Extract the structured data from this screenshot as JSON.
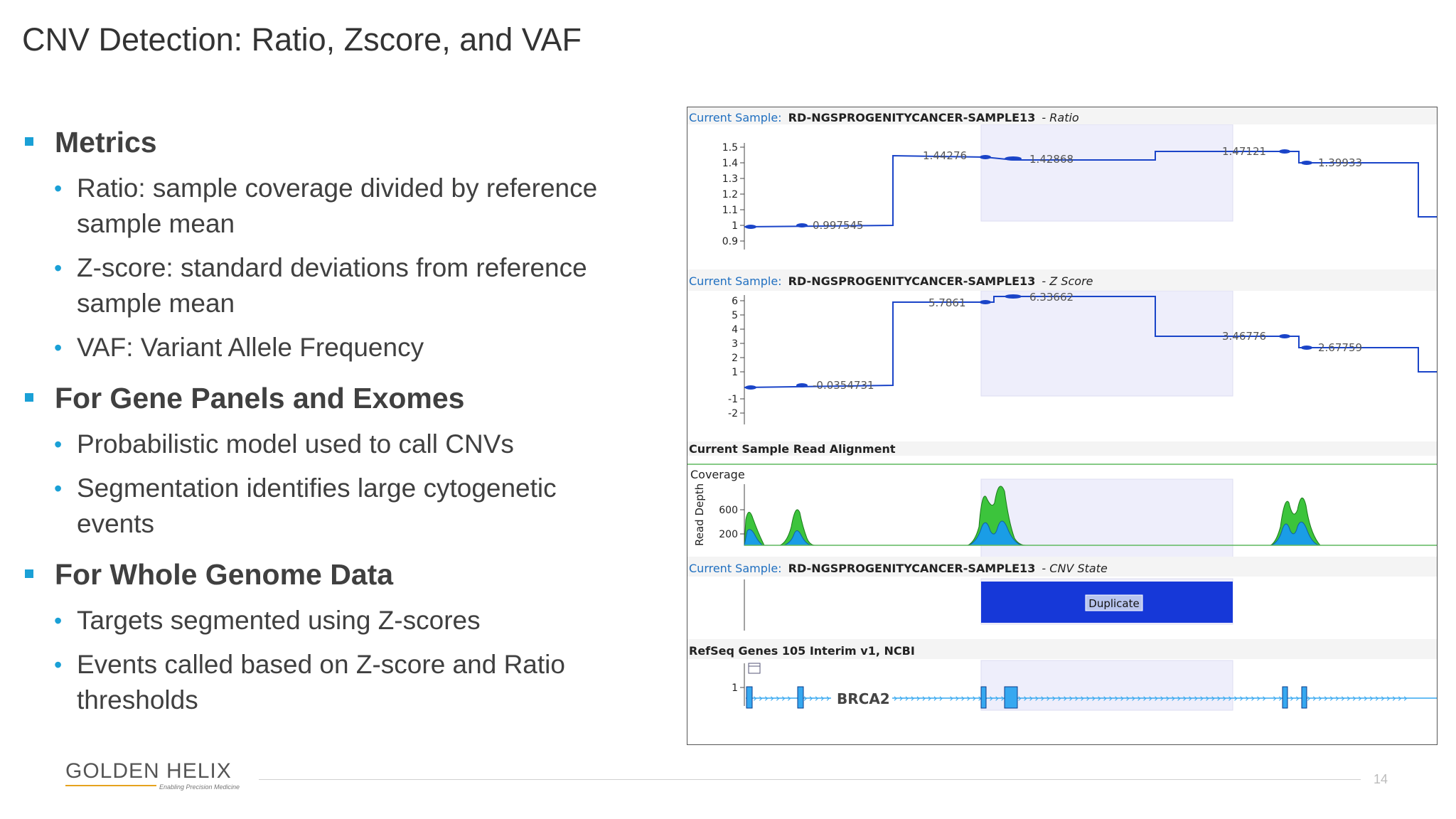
{
  "slide": {
    "title": "CNV Detection: Ratio, Zscore, and VAF",
    "page_number": "14"
  },
  "bullets": [
    {
      "text": "Metrics",
      "children": [
        "Ratio: sample coverage divided by reference sample mean",
        "Z-score: standard deviations from reference sample mean",
        "VAF: Variant Allele Frequency"
      ]
    },
    {
      "text": "For Gene Panels and Exomes",
      "children": [
        "Probabilistic model used to call CNVs",
        "Segmentation identifies large cytogenetic events"
      ]
    },
    {
      "text": "For Whole Genome Data",
      "children": [
        "Targets segmented using Z-scores",
        "Events called based on Z-score and Ratio thresholds"
      ]
    }
  ],
  "logo": {
    "name": "GOLDEN HELIX",
    "tagline": "Enabling Precision Medicine",
    "accent_color": "#e6a31e"
  },
  "screenshot": {
    "sample_prefix": "Current Sample:",
    "sample_id": "RD-NGSPROGENITYCANCER-SAMPLE13",
    "ratio_track": {
      "suffix": "- Ratio",
      "yticks": [
        "1.5",
        "1.4",
        "1.3",
        "1.2",
        "1.1",
        "1",
        "0.9"
      ],
      "labels": [
        "0.997545",
        "1.44276",
        "1.42868",
        "1.47121",
        "1.39933"
      ]
    },
    "zscore_track": {
      "suffix": "- Z Score",
      "yticks": [
        "6",
        "5",
        "4",
        "3",
        "2",
        "1",
        "-1",
        "-2"
      ],
      "labels": [
        "-0.0354731",
        "5.7861",
        "6.33662",
        "3.46776",
        "2.67759"
      ]
    },
    "alignment_track": {
      "title": "Current Sample Read Alignment",
      "subtitle": "Coverage",
      "ylabel": "Read Depth",
      "yticks": [
        "600",
        "200"
      ]
    },
    "cnv_track": {
      "suffix": "- CNV State",
      "state_label": "Duplicate"
    },
    "gene_track": {
      "title": "RefSeq Genes 105 Interim v1, NCBI",
      "ytick": "1",
      "gene": "BRCA2"
    },
    "colors": {
      "line": "#1a44c8",
      "highlight": "#eeeefb",
      "coverage_green": "#3cc43c",
      "coverage_blue": "#1a9de6",
      "cnv_fill": "#1638d8",
      "exon_fill": "#36a8f0",
      "header_blue": "#1f6fc0"
    }
  }
}
